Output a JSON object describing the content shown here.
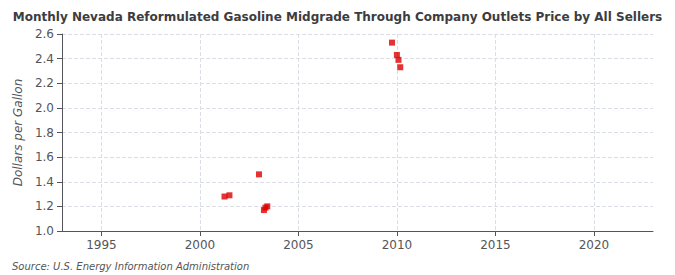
{
  "chart_data": {
    "type": "scatter",
    "title": "Monthly Nevada Reformulated Gasoline Midgrade Through Company Outlets Price by All Sellers",
    "ylabel": "Dollars per Gallon",
    "annotations": [
      "Source: U.S. Energy Information Administration"
    ],
    "x": [
      2001.25,
      2001.5,
      2003.0,
      2003.25,
      2003.33,
      2003.42,
      2009.75,
      2010.0,
      2010.08,
      2010.17
    ],
    "values": [
      1.28,
      1.29,
      1.46,
      1.17,
      1.19,
      1.2,
      2.53,
      2.43,
      2.39,
      2.33
    ],
    "color": "#dd0000",
    "marker": "square",
    "xlim": [
      1993,
      2023
    ],
    "ylim": [
      1.0,
      2.6
    ],
    "xticks": [
      1995,
      2000,
      2005,
      2010,
      2015,
      2020
    ],
    "yticks": [
      {
        "value": 1.0,
        "label": "1.0"
      },
      1.2,
      1.4,
      1.6,
      1.8,
      {
        "value": 2.0,
        "label": "2.0"
      },
      2.2,
      2.4,
      2.6
    ],
    "grid": true
  }
}
